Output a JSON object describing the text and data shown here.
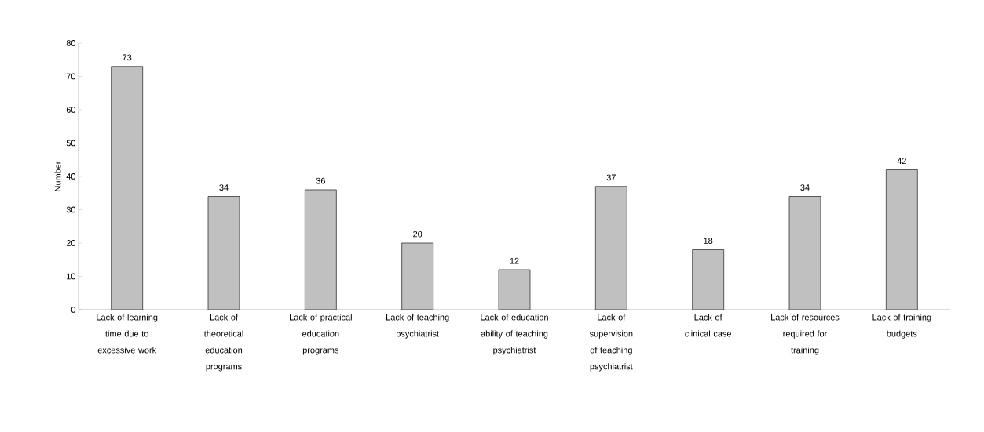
{
  "chart_data": {
    "type": "bar",
    "ylabel": "Number",
    "categories": [
      "Lack of learning time due to excessive work",
      "Lack of theoretical education programs",
      "Lack of practical education programs",
      "Lack of teaching psychiatrist",
      "Lack of education ability of teaching psychiatrist",
      "Lack of supervision of teaching psychiatrist",
      "Lack of clinical case",
      "Lack of resources required for training",
      "Lack of training budgets"
    ],
    "values": [
      73,
      34,
      36,
      20,
      12,
      37,
      18,
      34,
      42
    ],
    "color": "#c0c0c0",
    "ylim": [
      0,
      80
    ],
    "yticks": [
      0,
      10,
      20,
      30,
      40,
      50,
      60,
      70,
      80
    ],
    "data_labels": true
  }
}
